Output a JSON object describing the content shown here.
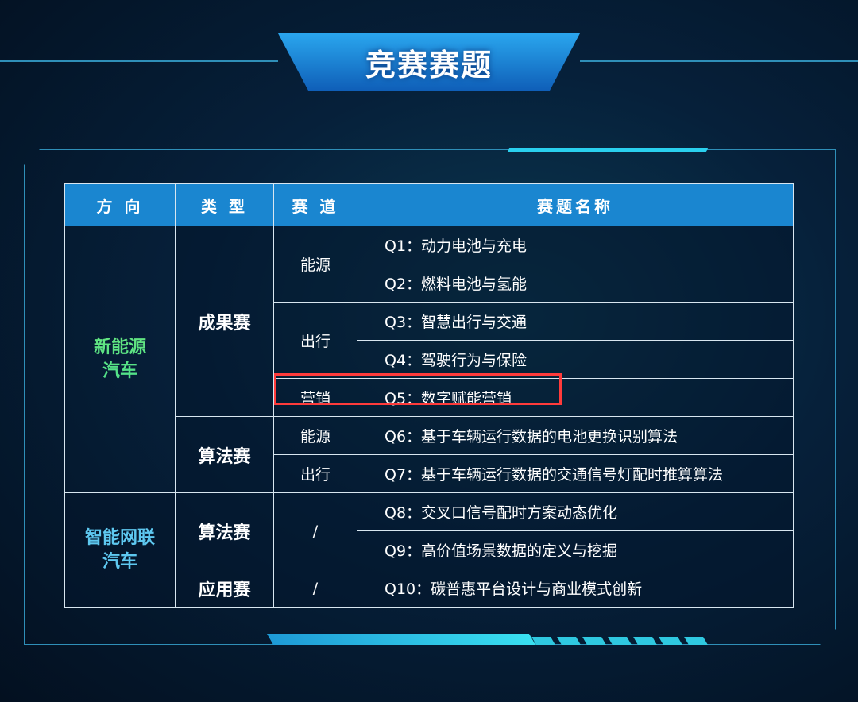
{
  "title": "竞赛赛题",
  "colors": {
    "header_bg": "#1a86d0",
    "highlight": "#ff3b3b",
    "frame": "#2f8fb8"
  },
  "table": {
    "headers": [
      "方 向",
      "类 型",
      "赛 道",
      "赛题名称"
    ],
    "directions": [
      {
        "line1": "新能源",
        "line2": "汽车"
      },
      {
        "line1": "智能网联",
        "line2": "汽车"
      }
    ],
    "types": [
      "成果赛",
      "算法赛",
      "算法赛",
      "应用赛"
    ],
    "tracks": [
      "能源",
      "出行",
      "营销",
      "能源",
      "出行",
      "/",
      "/"
    ],
    "questions": [
      "Q1：动力电池与充电",
      "Q2：燃料电池与氢能",
      "Q3：智慧出行与交通",
      "Q4：驾驶行为与保险",
      "Q5：数字赋能营销",
      "Q6：基于车辆运行数据的电池更换识别算法",
      "Q7：基于车辆运行数据的交通信号灯配时推算算法",
      "Q8：交叉口信号配时方案动态优化",
      "Q9：高价值场景数据的定义与挖掘",
      "Q10：碳普惠平台设计与商业模式创新"
    ],
    "highlighted_row": "Q5"
  }
}
